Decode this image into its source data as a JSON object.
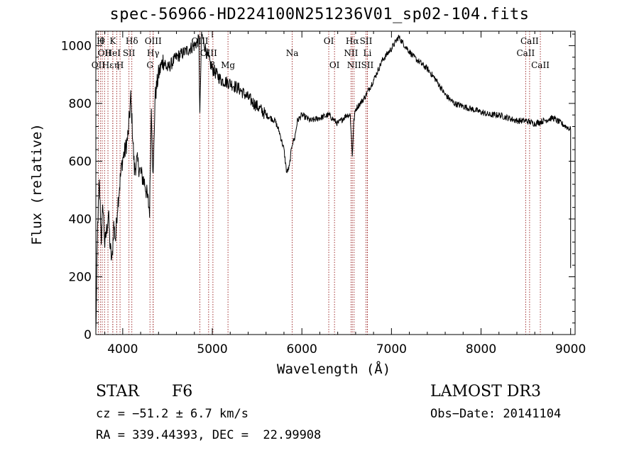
{
  "chart_data": {
    "type": "line",
    "title": "spec-56966-HD224100N251236V01_sp02-104.fits",
    "xlabel": "Wavelength (Å)",
    "ylabel": "Flux (relative)",
    "xlim": [
      3700,
      9050
    ],
    "ylim": [
      0,
      1050
    ],
    "xticks": [
      4000,
      5000,
      6000,
      7000,
      8000,
      9000
    ],
    "yticks": [
      0,
      200,
      400,
      600,
      800,
      1000
    ],
    "grid": false,
    "series": [
      {
        "x": [
          3700,
          3720,
          3740,
          3760,
          3780,
          3800,
          3820,
          3840,
          3860,
          3880,
          3900,
          3920,
          3940,
          3960,
          3980,
          4000,
          4030,
          4060,
          4090,
          4100,
          4130,
          4160,
          4200,
          4250,
          4300,
          4320,
          4340,
          4360,
          4400,
          4450,
          4500,
          4600,
          4700,
          4800,
          4850,
          4861,
          4880,
          4950,
          5000,
          5050,
          5100,
          5200,
          5300,
          5400,
          5500,
          5600,
          5700,
          5750,
          5800,
          5830,
          5860,
          5890,
          5920,
          5950,
          6000,
          6100,
          6200,
          6300,
          6400,
          6500,
          6540,
          6563,
          6580,
          6600,
          6700,
          6800,
          6900,
          7000,
          7080,
          7150,
          7250,
          7400,
          7500,
          7600,
          7700,
          7800,
          7900,
          8000,
          8100,
          8200,
          8300,
          8400,
          8500,
          8600,
          8700,
          8800,
          8900,
          9000
        ],
        "y": [
          0,
          380,
          520,
          330,
          450,
          310,
          360,
          420,
          300,
          250,
          380,
          330,
          440,
          500,
          560,
          610,
          640,
          690,
          820,
          760,
          570,
          600,
          560,
          520,
          430,
          790,
          540,
          820,
          900,
          950,
          920,
          960,
          980,
          1000,
          1020,
          760,
          1040,
          960,
          920,
          900,
          880,
          870,
          850,
          820,
          790,
          760,
          740,
          700,
          640,
          560,
          580,
          660,
          680,
          740,
          760,
          740,
          750,
          760,
          730,
          760,
          760,
          620,
          740,
          780,
          820,
          880,
          950,
          990,
          1030,
          1000,
          960,
          920,
          880,
          830,
          800,
          790,
          780,
          770,
          760,
          760,
          750,
          740,
          740,
          730,
          740,
          750,
          730,
          710
        ]
      }
    ],
    "lines": [
      {
        "x": 3727,
        "labels": [
          "OII"
        ],
        "row": 3
      },
      {
        "x": 3750,
        "labels": [
          "H"
        ],
        "row": 1
      },
      {
        "x": 3771,
        "labels": [
          "θ"
        ],
        "row": 1
      },
      {
        "x": 3797,
        "labels": [
          "OII"
        ],
        "row": 2
      },
      {
        "x": 3835,
        "labels": [
          "Hε"
        ],
        "row": 3
      },
      {
        "x": 3889,
        "labels": [
          "K"
        ],
        "row": 1
      },
      {
        "x": 3889,
        "labels": [
          "HeI"
        ],
        "row": 2
      },
      {
        "x": 3934,
        "labels": [
          "η"
        ],
        "row": 3
      },
      {
        "x": 3970,
        "labels": [
          "H"
        ],
        "row": 3
      },
      {
        "x": 4070,
        "labels": [
          "SII"
        ],
        "row": 2
      },
      {
        "x": 4102,
        "labels": [
          "Hδ"
        ],
        "row": 1
      },
      {
        "x": 4304,
        "labels": [
          "G"
        ],
        "row": 3
      },
      {
        "x": 4340,
        "labels": [
          "OIII"
        ],
        "row": 1
      },
      {
        "x": 4340,
        "labels": [
          "Hγ"
        ],
        "row": 2
      },
      {
        "x": 4861,
        "labels": [
          "OIII"
        ],
        "row": 1
      },
      {
        "x": 4959,
        "labels": [
          "OIII"
        ],
        "row": 2
      },
      {
        "x": 5007,
        "labels": [
          "β"
        ],
        "row": 3
      },
      {
        "x": 5175,
        "labels": [
          "Mg"
        ],
        "row": 3
      },
      {
        "x": 5892,
        "labels": [
          "Na"
        ],
        "row": 2
      },
      {
        "x": 6300,
        "labels": [
          "OI"
        ],
        "row": 1
      },
      {
        "x": 6364,
        "labels": [
          "OI"
        ],
        "row": 3
      },
      {
        "x": 6548,
        "labels": [
          "NII"
        ],
        "row": 2
      },
      {
        "x": 6563,
        "labels": [
          "Hα"
        ],
        "row": 1
      },
      {
        "x": 6583,
        "labels": [
          "NII"
        ],
        "row": 3
      },
      {
        "x": 6716,
        "labels": [
          "SII"
        ],
        "row": 1
      },
      {
        "x": 6731,
        "labels": [
          "Li"
        ],
        "row": 2
      },
      {
        "x": 6731,
        "labels": [
          "SII"
        ],
        "row": 3
      },
      {
        "x": 8498,
        "labels": [
          "CaII"
        ],
        "row": 2
      },
      {
        "x": 8542,
        "labels": [
          "CaII"
        ],
        "row": 1
      },
      {
        "x": 8662,
        "labels": [
          "CaII"
        ],
        "row": 3
      }
    ]
  },
  "info": {
    "class": "STAR",
    "subclass": "F6",
    "cz": "cz = −51.2 ± 6.7 km/s",
    "coords": "RA = 339.44393, DEC =  22.99908",
    "survey": "LAMOST DR3",
    "obs_date": "Obs−Date: 20141104"
  },
  "colors": {
    "line_marker": "#8b0000",
    "spectrum": "#000000"
  }
}
